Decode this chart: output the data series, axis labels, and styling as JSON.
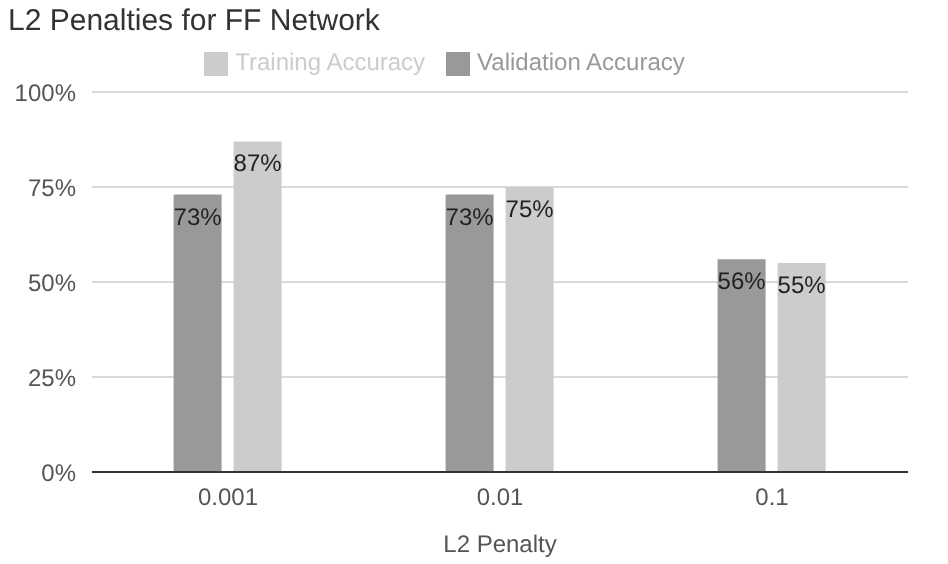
{
  "chart_data": {
    "type": "bar",
    "title": "L2 Penalties for FF Network",
    "xlabel": "L2 Penalty",
    "categories": [
      "0.001",
      "0.01",
      "0.1"
    ],
    "series": [
      {
        "name": "Validation Accuracy",
        "color": "#999999",
        "values": [
          73,
          73,
          56
        ],
        "value_labels": [
          "73%",
          "73%",
          "56%"
        ]
      },
      {
        "name": "Training Accuracy",
        "color": "#cccccc",
        "values": [
          87,
          75,
          55
        ],
        "value_labels": [
          "87%",
          "75%",
          "55%"
        ]
      }
    ],
    "ylim": [
      0,
      100
    ],
    "yticks": [
      {
        "value": 0,
        "label": "0%"
      },
      {
        "value": 25,
        "label": "25%"
      },
      {
        "value": 50,
        "label": "50%"
      },
      {
        "value": 75,
        "label": "75%"
      },
      {
        "value": 100,
        "label": "100%"
      }
    ],
    "grid": "y",
    "legend": "top"
  }
}
